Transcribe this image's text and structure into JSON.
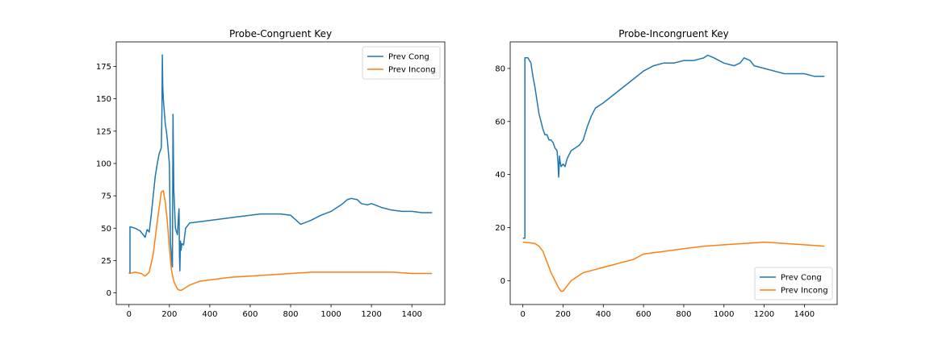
{
  "chart_data": [
    {
      "type": "line",
      "title": "Probe-Congruent Key",
      "xlabel": "",
      "ylabel": "",
      "xlim": [
        -63,
        1563
      ],
      "ylim": [
        -9,
        194
      ],
      "xticks": [
        0,
        200,
        400,
        600,
        800,
        1000,
        1200,
        1400
      ],
      "yticks": [
        0,
        25,
        50,
        75,
        100,
        125,
        150,
        175
      ],
      "legend": "top-right",
      "grid": false,
      "series": [
        {
          "name": "Prev Cong",
          "color": "#1f77b4",
          "x": [
            0,
            5,
            5,
            8,
            30,
            55,
            80,
            90,
            100,
            110,
            120,
            130,
            140,
            150,
            160,
            163,
            165,
            167,
            170,
            175,
            180,
            185,
            190,
            200,
            205,
            210,
            212,
            215,
            218,
            222,
            230,
            240,
            245,
            248,
            250,
            252,
            255,
            258,
            262,
            270,
            280,
            300,
            350,
            400,
            450,
            500,
            550,
            600,
            650,
            700,
            750,
            800,
            850,
            900,
            950,
            1000,
            1050,
            1080,
            1100,
            1130,
            1150,
            1180,
            1200,
            1250,
            1300,
            1350,
            1400,
            1450,
            1500
          ],
          "y": [
            15,
            16,
            51,
            51,
            50,
            48,
            43,
            49,
            47,
            60,
            75,
            90,
            100,
            108,
            112,
            140,
            184,
            160,
            150,
            140,
            130,
            125,
            118,
            100,
            40,
            30,
            25,
            20,
            138,
            80,
            50,
            45,
            60,
            65,
            30,
            17,
            40,
            33,
            38,
            37,
            50,
            54,
            55,
            56,
            57,
            58,
            59,
            60,
            61,
            61,
            61,
            60,
            53,
            56,
            60,
            63,
            68,
            72,
            73,
            72,
            69,
            68,
            69,
            66,
            64,
            63,
            63,
            62,
            62
          ]
        },
        {
          "name": "Prev Incong",
          "color": "#ff7f0e",
          "x": [
            0,
            30,
            60,
            80,
            100,
            120,
            140,
            160,
            170,
            180,
            190,
            200,
            210,
            220,
            230,
            240,
            250,
            260,
            280,
            300,
            350,
            400,
            450,
            500,
            600,
            700,
            800,
            900,
            1000,
            1100,
            1200,
            1300,
            1400,
            1500
          ],
          "y": [
            15,
            16,
            15,
            13,
            16,
            30,
            55,
            78,
            79,
            70,
            55,
            35,
            18,
            10,
            6,
            3,
            2,
            2,
            4,
            6,
            9,
            10,
            11,
            12,
            13,
            14,
            15,
            16,
            16,
            16,
            16,
            16,
            15,
            15
          ]
        }
      ]
    },
    {
      "type": "line",
      "title": "Probe-Incongruent Key",
      "xlabel": "",
      "ylabel": "",
      "xlim": [
        -63,
        1563
      ],
      "ylim": [
        -9,
        90
      ],
      "xticks": [
        0,
        200,
        400,
        600,
        800,
        1000,
        1200,
        1400
      ],
      "yticks": [
        0,
        20,
        40,
        60,
        80
      ],
      "legend": "bottom-right",
      "grid": false,
      "series": [
        {
          "name": "Prev Cong",
          "color": "#1f77b4",
          "x": [
            0,
            10,
            10,
            15,
            25,
            40,
            50,
            60,
            70,
            80,
            90,
            100,
            110,
            120,
            130,
            140,
            150,
            160,
            170,
            175,
            178,
            180,
            182,
            185,
            190,
            200,
            210,
            220,
            240,
            260,
            280,
            300,
            320,
            340,
            360,
            380,
            400,
            450,
            500,
            550,
            600,
            650,
            700,
            750,
            800,
            850,
            900,
            920,
            950,
            1000,
            1050,
            1080,
            1100,
            1130,
            1150,
            1200,
            1250,
            1300,
            1350,
            1400,
            1450,
            1500
          ],
          "y": [
            16,
            16,
            84,
            84,
            84,
            82,
            77,
            73,
            68,
            63,
            60,
            57,
            55,
            55,
            53,
            53,
            52,
            50,
            49,
            44,
            39,
            42,
            47,
            45,
            43,
            44,
            43,
            46,
            49,
            50,
            51,
            53,
            58,
            62,
            65,
            66,
            67,
            70,
            73,
            76,
            79,
            81,
            82,
            82,
            83,
            83,
            84,
            85,
            84,
            82,
            81,
            82,
            84,
            83,
            81,
            80,
            79,
            78,
            78,
            78,
            77,
            77
          ]
        },
        {
          "name": "Prev Incong",
          "color": "#ff7f0e",
          "x": [
            0,
            30,
            60,
            80,
            100,
            120,
            140,
            160,
            180,
            190,
            200,
            210,
            220,
            240,
            260,
            300,
            350,
            400,
            450,
            500,
            550,
            600,
            700,
            800,
            900,
            1000,
            1100,
            1200,
            1250,
            1300,
            1400,
            1500
          ],
          "y": [
            14.5,
            14.3,
            14,
            13,
            11,
            7,
            3,
            0,
            -3,
            -4,
            -4,
            -3,
            -2,
            0,
            1,
            3,
            4,
            5,
            6,
            7,
            8,
            10,
            11,
            12,
            13,
            13.5,
            14,
            14.5,
            14.3,
            14,
            13.5,
            13
          ]
        }
      ]
    }
  ]
}
